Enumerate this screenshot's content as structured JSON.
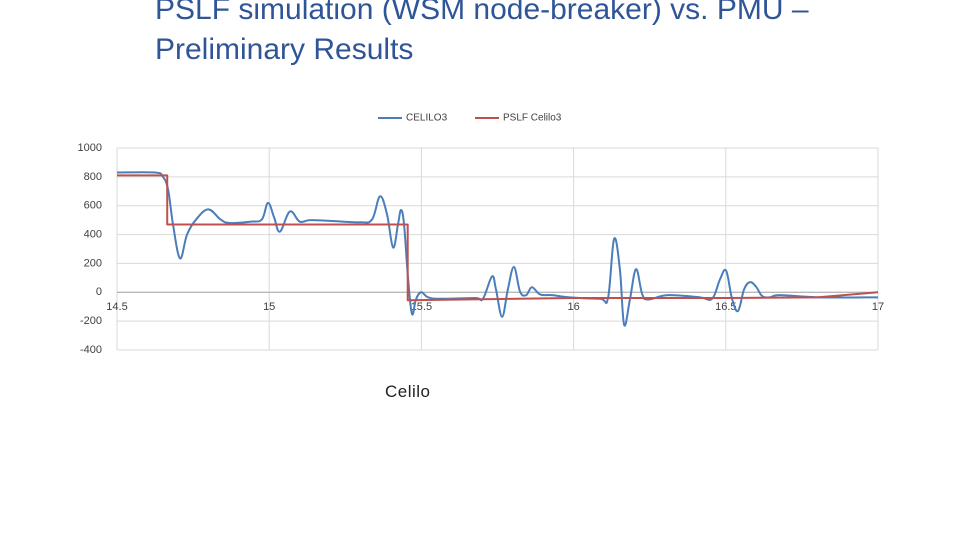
{
  "slide_title": "PSLF simulation (WSM node-breaker) vs. PMU – Preliminary Results",
  "caption": "Celilo",
  "chart_data": {
    "type": "line",
    "grid": true,
    "xlim": [
      14.5,
      17
    ],
    "xticks": [
      14.5,
      15,
      15.5,
      16,
      16.5,
      17
    ],
    "ylim": [
      -400,
      1000
    ],
    "yticks": [
      -400,
      -200,
      0,
      200,
      400,
      600,
      800,
      1000
    ],
    "legend": "top",
    "series": [
      {
        "name": "CELILO3",
        "color": "#4a7ebb",
        "x": [
          14.5,
          14.625,
          14.651,
          14.668,
          14.684,
          14.707,
          14.73,
          14.76,
          14.8,
          14.84,
          14.87,
          14.94,
          14.976,
          14.996,
          15.016,
          15.035,
          15.068,
          15.1,
          15.134,
          15.2,
          15.298,
          15.338,
          15.364,
          15.387,
          15.407,
          15.423,
          15.433,
          15.443,
          15.456,
          15.469,
          15.482,
          15.499,
          15.522,
          15.561,
          15.676,
          15.702,
          15.732,
          15.745,
          15.765,
          15.784,
          15.804,
          15.824,
          15.844,
          15.863,
          15.89,
          15.929,
          15.988,
          16.087,
          16.113,
          16.133,
          16.152,
          16.166,
          16.185,
          16.205,
          16.225,
          16.244,
          16.31,
          16.415,
          16.455,
          16.481,
          16.501,
          16.52,
          16.54,
          16.56,
          16.579,
          16.599,
          16.619,
          16.645,
          16.678,
          16.809,
          17
        ],
        "values": [
          830,
          830,
          800,
          710,
          470,
          235,
          400,
          505,
          575,
          505,
          480,
          490,
          505,
          620,
          520,
          420,
          560,
          490,
          500,
          495,
          485,
          505,
          665,
          540,
          310,
          470,
          570,
          470,
          100,
          -150,
          -50,
          0,
          -35,
          -45,
          -40,
          -45,
          110,
          20,
          -170,
          20,
          175,
          5,
          -20,
          35,
          -15,
          -20,
          -35,
          -45,
          -40,
          370,
          160,
          -225,
          -50,
          160,
          -10,
          -50,
          -20,
          -35,
          -45,
          90,
          150,
          -40,
          -130,
          20,
          70,
          40,
          -25,
          -35,
          -20,
          -35,
          -35
        ]
      },
      {
        "name": "PSLF Celilo3",
        "color": "#c0504d",
        "x": [
          14.5,
          14.665,
          14.665,
          15.455,
          15.455,
          16.0,
          16.5,
          16.8,
          17
        ],
        "values": [
          810,
          810,
          470,
          470,
          -55,
          -40,
          -40,
          -35,
          0
        ]
      }
    ]
  }
}
